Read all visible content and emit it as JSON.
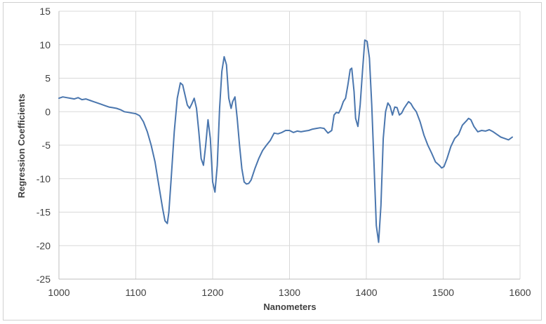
{
  "chart_data": {
    "type": "line",
    "title": "",
    "xlabel": "Nanometers",
    "ylabel": "Regression Coefficients",
    "xlim": [
      1000,
      1600
    ],
    "ylim": [
      -25,
      15
    ],
    "xticks": [
      1000,
      1100,
      1200,
      1300,
      1400,
      1500,
      1600
    ],
    "yticks": [
      15,
      10,
      5,
      0,
      -5,
      -10,
      -15,
      -20,
      -25
    ],
    "grid": true,
    "legend": "none",
    "color": "#4a76ae",
    "series": [
      {
        "x": [
          1000,
          1005,
          1010,
          1015,
          1020,
          1025,
          1030,
          1035,
          1040,
          1045,
          1050,
          1055,
          1060,
          1065,
          1070,
          1075,
          1080,
          1085,
          1090,
          1095,
          1100,
          1105,
          1110,
          1115,
          1120,
          1125,
          1130,
          1135,
          1138,
          1141,
          1143,
          1146,
          1150,
          1154,
          1158,
          1161,
          1164,
          1167,
          1170,
          1173,
          1176,
          1179,
          1182,
          1185,
          1188,
          1191,
          1194,
          1197,
          1200,
          1203,
          1206,
          1209,
          1212,
          1215,
          1218,
          1221,
          1224,
          1226,
          1229,
          1232,
          1235,
          1238,
          1241,
          1244,
          1247,
          1250,
          1255,
          1260,
          1265,
          1270,
          1275,
          1280,
          1285,
          1290,
          1295,
          1300,
          1305,
          1310,
          1315,
          1320,
          1325,
          1330,
          1335,
          1340,
          1345,
          1350,
          1355,
          1358,
          1361,
          1364,
          1367,
          1370,
          1373,
          1376,
          1379,
          1381,
          1384,
          1386,
          1389,
          1392,
          1395,
          1398,
          1401,
          1404,
          1407,
          1410,
          1413,
          1416,
          1419,
          1422,
          1425,
          1428,
          1431,
          1434,
          1437,
          1440,
          1443,
          1446,
          1449,
          1452,
          1455,
          1458,
          1461,
          1465,
          1470,
          1475,
          1480,
          1485,
          1490,
          1495,
          1498,
          1501,
          1505,
          1510,
          1515,
          1520,
          1525,
          1530,
          1533,
          1536,
          1540,
          1545,
          1550,
          1555,
          1560,
          1565,
          1570,
          1575,
          1580,
          1585,
          1590
        ],
        "y": [
          2,
          2.2,
          2.1,
          2,
          1.9,
          2.1,
          1.8,
          1.9,
          1.7,
          1.5,
          1.3,
          1.1,
          0.9,
          0.7,
          0.6,
          0.5,
          0.3,
          0,
          -0.1,
          -0.2,
          -0.3,
          -0.6,
          -1.5,
          -3,
          -5,
          -7.5,
          -11,
          -14.5,
          -16.3,
          -16.7,
          -15,
          -10,
          -3,
          2,
          4.3,
          4,
          2.5,
          1,
          0.5,
          1.2,
          2,
          0.5,
          -3,
          -7,
          -8,
          -5,
          -1.2,
          -4,
          -10.5,
          -12,
          -8,
          0.5,
          6,
          8.2,
          7,
          2,
          0.5,
          1.5,
          2.2,
          -1,
          -5,
          -8.5,
          -10.5,
          -10.8,
          -10.7,
          -10.2,
          -8.5,
          -7,
          -5.8,
          -5,
          -4.3,
          -3.2,
          -3.3,
          -3.1,
          -2.8,
          -2.8,
          -3.1,
          -2.9,
          -3,
          -2.9,
          -2.8,
          -2.6,
          -2.5,
          -2.4,
          -2.5,
          -3.2,
          -2.8,
          -0.5,
          -0.1,
          -0.2,
          0.5,
          1.5,
          2,
          4,
          6.3,
          6.5,
          3,
          -1,
          -2.2,
          1,
          6,
          10.7,
          10.5,
          8,
          1,
          -8,
          -17,
          -19.5,
          -14,
          -4,
          0,
          1.3,
          0.8,
          -0.5,
          0.7,
          0.6,
          -0.5,
          -0.2,
          0.5,
          1,
          1.5,
          1.2,
          0.6,
          0,
          -1.5,
          -3.5,
          -5,
          -6.2,
          -7.5,
          -8,
          -8.4,
          -8.2,
          -7,
          -5.2,
          -4,
          -3.4,
          -2,
          -1.4,
          -1,
          -1.2,
          -2.2,
          -3,
          -2.8,
          -2.9,
          -2.7,
          -3,
          -3.4,
          -3.8,
          -4,
          -4.2,
          -3.8
        ]
      }
    ]
  }
}
